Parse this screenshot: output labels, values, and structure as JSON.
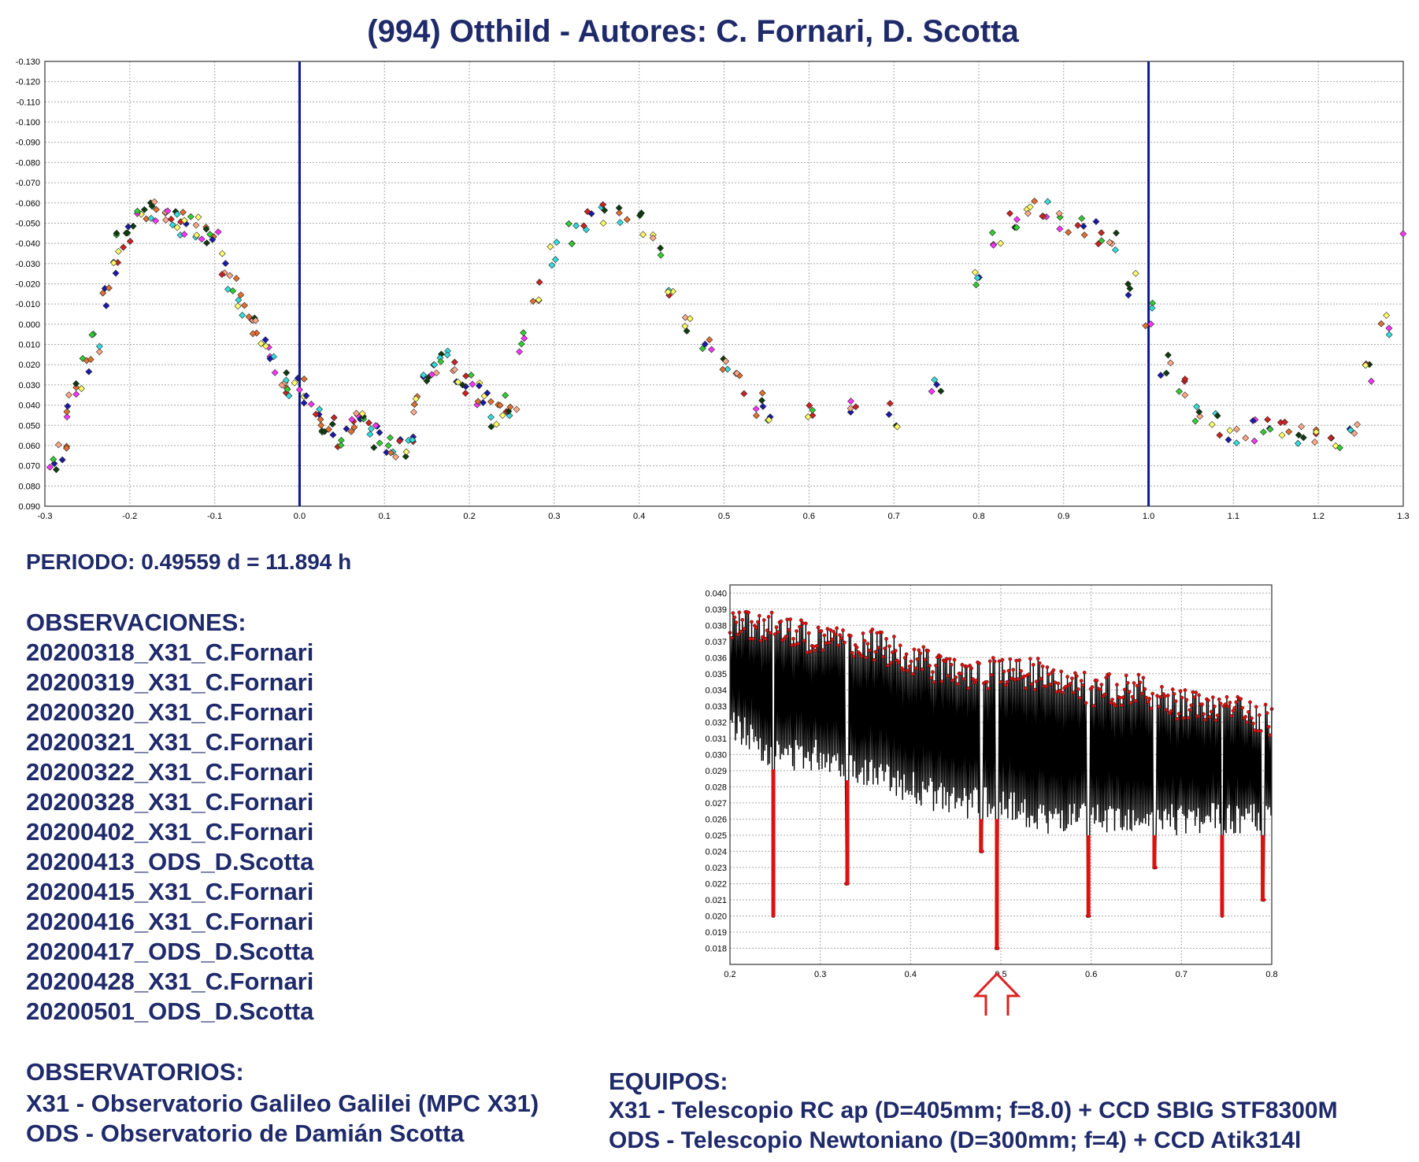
{
  "title": "(994) Otthild - Autores: C. Fornari, D. Scotta",
  "period": "PERIODO: 0.49559 d = 11.894 h",
  "observaciones": {
    "heading": "OBSERVACIONES:",
    "items": [
      "20200318_X31_C.Fornari",
      "20200319_X31_C.Fornari",
      "20200320_X31_C.Fornari",
      "20200321_X31_C.Fornari",
      "20200322_X31_C.Fornari",
      "20200328_X31_C.Fornari",
      "20200402_X31_C.Fornari",
      "20200413_ODS_D.Scotta",
      "20200415_X31_C.Fornari",
      "20200416_X31_C.Fornari",
      "20200417_ODS_D.Scotta",
      "20200428_X31_C.Fornari",
      "20200501_ODS_D.Scotta"
    ]
  },
  "observatorios": {
    "heading": "OBSERVATORIOS:",
    "line1": "X31 - Observatorio Galileo Galilei (MPC X31)",
    "line2": "ODS - Observatorio de Damián Scotta"
  },
  "equipos": {
    "heading": "EQUIPOS:",
    "line1": "X31 - Telescopio RC ap (D=405mm; f=8.0) + CCD SBIG STF8300M",
    "line2": "ODS - Telescopio Newtoniano (D=300mm; f=4) + CCD Atik314l"
  },
  "chart_data": [
    {
      "type": "scatter",
      "title": "(994) Otthild - Autores: C. Fornari, D. Scotta",
      "xlim": [
        -0.3,
        1.3
      ],
      "ylim": [
        -0.13,
        0.09
      ],
      "y_inverted": true,
      "x_ticks": [
        "-0.3",
        "-0.2",
        "-0.1",
        "0.0",
        "0.1",
        "0.2",
        "0.3",
        "0.4",
        "0.5",
        "0.6",
        "0.7",
        "0.8",
        "0.9",
        "1.0",
        "1.1",
        "1.2",
        "1.3"
      ],
      "y_ticks": [
        "-0.130",
        "-0.120",
        "-0.110",
        "-0.100",
        "-0.090",
        "-0.080",
        "-0.070",
        "-0.060",
        "-0.050",
        "-0.040",
        "-0.030",
        "-0.020",
        "-0.010",
        "0.000",
        "0.010",
        "0.020",
        "0.030",
        "0.040",
        "0.050",
        "0.060",
        "0.070",
        "0.080",
        "0.090"
      ],
      "grid": true,
      "vertical_lines": [
        0.0,
        1.0
      ],
      "vertical_line_color": "#0a1a8c",
      "series_colors": [
        "#0d3d0d",
        "#ffff66",
        "#1a1aa8",
        "#e07030",
        "#ff33ff",
        "#33dddd",
        "#33cc33",
        "#cc2222",
        "#ffaa88"
      ],
      "marker": "diamond",
      "series": [
        {
          "x": [
            -0.3,
            -0.29,
            -0.28,
            -0.27,
            -0.26,
            -0.25,
            -0.24,
            -0.23,
            -0.22,
            -0.21,
            -0.2,
            -0.19,
            -0.18,
            -0.17,
            -0.16,
            -0.15,
            -0.14,
            -0.13,
            -0.12,
            -0.11,
            -0.1,
            -0.09,
            -0.08,
            -0.07,
            -0.06,
            -0.05,
            -0.04,
            -0.03,
            -0.02,
            -0.01,
            0.0,
            0.01,
            0.02,
            0.03,
            0.04,
            0.05,
            0.06,
            0.07,
            0.08,
            0.09,
            0.1,
            0.11,
            0.12,
            0.13,
            0.14,
            0.15,
            0.16,
            0.17,
            0.18,
            0.19,
            0.2,
            0.21,
            0.22,
            0.23,
            0.24,
            0.25
          ],
          "y": [
            0.06,
            0.07,
            0.065,
            0.04,
            0.03,
            0.018,
            0.008,
            -0.012,
            -0.03,
            -0.04,
            -0.045,
            -0.05,
            -0.055,
            -0.056,
            -0.055,
            -0.055,
            -0.05,
            -0.05,
            -0.048,
            -0.045,
            -0.04,
            -0.03,
            -0.02,
            -0.01,
            -0.005,
            0.0,
            0.01,
            0.022,
            0.028,
            0.03,
            0.032,
            0.04,
            0.045,
            0.05,
            0.052,
            0.055,
            0.052,
            0.05,
            0.05,
            0.055,
            0.058,
            0.06,
            0.06,
            0.055,
            0.04,
            0.03,
            0.02,
            0.015,
            0.02,
            0.025,
            0.03,
            0.035,
            0.04,
            0.045,
            0.04,
            0.04
          ]
        },
        {
          "x": [
            0.55,
            0.6,
            0.65,
            0.7,
            0.75,
            0.8,
            0.82,
            0.84,
            0.86,
            0.88,
            0.9,
            0.92,
            0.94,
            0.96,
            0.98,
            1.0,
            1.02,
            1.04,
            1.06,
            1.08,
            1.1,
            1.12,
            1.14,
            1.16,
            1.18,
            1.2,
            1.22,
            1.24,
            1.26,
            1.28,
            1.3
          ],
          "y": [
            0.045,
            0.045,
            0.042,
            0.045,
            0.03,
            -0.02,
            -0.045,
            -0.05,
            -0.055,
            -0.055,
            -0.05,
            -0.048,
            -0.045,
            -0.04,
            -0.02,
            -0.005,
            0.02,
            0.03,
            0.045,
            0.05,
            0.055,
            0.052,
            0.05,
            0.05,
            0.055,
            0.058,
            0.06,
            0.05,
            0.025,
            0.0,
            -0.04
          ]
        },
        {
          "x": [
            0.26,
            0.28,
            0.3,
            0.32,
            0.34,
            0.36,
            0.38,
            0.4,
            0.42,
            0.44,
            0.46,
            0.48,
            0.5,
            0.52,
            0.54
          ],
          "y": [
            0.01,
            -0.015,
            -0.035,
            -0.045,
            -0.05,
            -0.055,
            -0.052,
            -0.05,
            -0.04,
            -0.02,
            0.0,
            0.01,
            0.02,
            0.03,
            0.04
          ]
        }
      ]
    },
    {
      "type": "line",
      "xlim": [
        0.2,
        0.8
      ],
      "ylim": [
        0.017,
        0.0405
      ],
      "x_ticks": [
        "0.2",
        "0.3",
        "0.4",
        "0.5",
        "0.6",
        "0.7",
        "0.8"
      ],
      "y_ticks": [
        "0.040",
        "0.039",
        "0.038",
        "0.037",
        "0.036",
        "0.035",
        "0.034",
        "0.033",
        "0.032",
        "0.031",
        "0.030",
        "0.029",
        "0.028",
        "0.027",
        "0.026",
        "0.025",
        "0.024",
        "0.023",
        "0.022",
        "0.021",
        "0.020",
        "0.019",
        "0.018"
      ],
      "grid": true,
      "line_color": "#000000",
      "marker_color": "#dd1111",
      "minimum_marker": {
        "x": 0.4956,
        "y": 0.018,
        "color": "#dd2222"
      },
      "envelope_upper": [
        [
          0.2,
          0.039
        ],
        [
          0.25,
          0.039
        ],
        [
          0.3,
          0.038
        ],
        [
          0.35,
          0.038
        ],
        [
          0.4,
          0.037
        ],
        [
          0.45,
          0.036
        ],
        [
          0.5,
          0.036
        ],
        [
          0.55,
          0.036
        ],
        [
          0.6,
          0.035
        ],
        [
          0.65,
          0.035
        ],
        [
          0.7,
          0.034
        ],
        [
          0.75,
          0.034
        ],
        [
          0.8,
          0.033
        ]
      ],
      "envelope_lower": [
        [
          0.2,
          0.031
        ],
        [
          0.25,
          0.029
        ],
        [
          0.3,
          0.029
        ],
        [
          0.35,
          0.028
        ],
        [
          0.4,
          0.027
        ],
        [
          0.45,
          0.026
        ],
        [
          0.5,
          0.026
        ],
        [
          0.55,
          0.025
        ],
        [
          0.6,
          0.025
        ],
        [
          0.65,
          0.025
        ],
        [
          0.7,
          0.025
        ],
        [
          0.75,
          0.025
        ],
        [
          0.8,
          0.025
        ]
      ],
      "dips": [
        [
          0.248,
          0.02
        ],
        [
          0.33,
          0.022
        ],
        [
          0.478,
          0.024
        ],
        [
          0.4956,
          0.018
        ],
        [
          0.597,
          0.02
        ],
        [
          0.67,
          0.023
        ],
        [
          0.745,
          0.02
        ],
        [
          0.79,
          0.021
        ]
      ]
    }
  ]
}
